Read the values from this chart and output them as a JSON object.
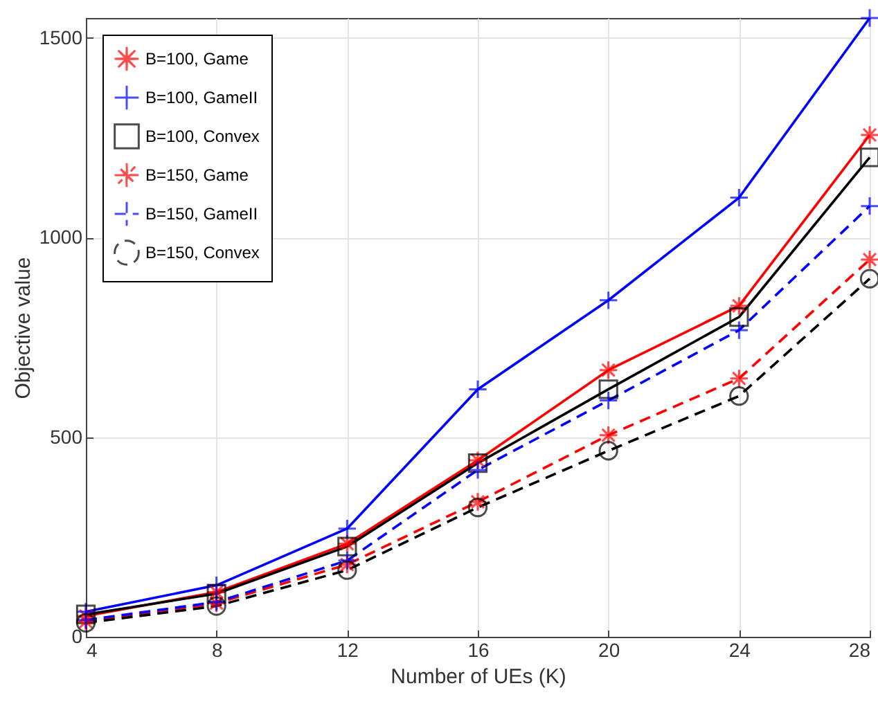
{
  "chart_data": {
    "type": "line",
    "xlabel": "Number of UEs (K)",
    "ylabel": "Objective value",
    "x": [
      4,
      8,
      12,
      16,
      20,
      24,
      28
    ],
    "xlim": [
      4,
      28
    ],
    "xticks": [
      4,
      8,
      12,
      16,
      20,
      24,
      28
    ],
    "ylim": [
      0,
      1550
    ],
    "yticks": [
      0,
      500,
      1000,
      1500
    ],
    "grid": true,
    "legend": "top left",
    "series": [
      {
        "name": "B=100, Game",
        "color": "#ff0000",
        "marker": "star",
        "line_style": "solid",
        "values": [
          52,
          112,
          233,
          442,
          668,
          829,
          1257
        ]
      },
      {
        "name": "B=100, GameII",
        "color": "#0000ff",
        "marker": "cross",
        "line_style": "solid",
        "values": [
          63,
          129,
          271,
          620,
          843,
          1100,
          1550
        ]
      },
      {
        "name": "B=100, Convex",
        "color": "#000000",
        "marker": "square",
        "line_style": "solid",
        "values": [
          56,
          108,
          226,
          435,
          620,
          801,
          1201
        ]
      },
      {
        "name": "B=150, Game",
        "color": "#ff0000",
        "marker": "star",
        "line_style": "dashed",
        "values": [
          38,
          84,
          181,
          338,
          505,
          647,
          945
        ]
      },
      {
        "name": "B=150, GameII",
        "color": "#0000ff",
        "marker": "cross",
        "line_style": "dashed",
        "values": [
          42,
          87,
          191,
          418,
          592,
          768,
          1079
        ]
      },
      {
        "name": "B=150, Convex",
        "color": "#000000",
        "marker": "circle",
        "line_style": "dashed",
        "values": [
          35,
          77,
          167,
          324,
          466,
          603,
          897
        ]
      }
    ]
  }
}
